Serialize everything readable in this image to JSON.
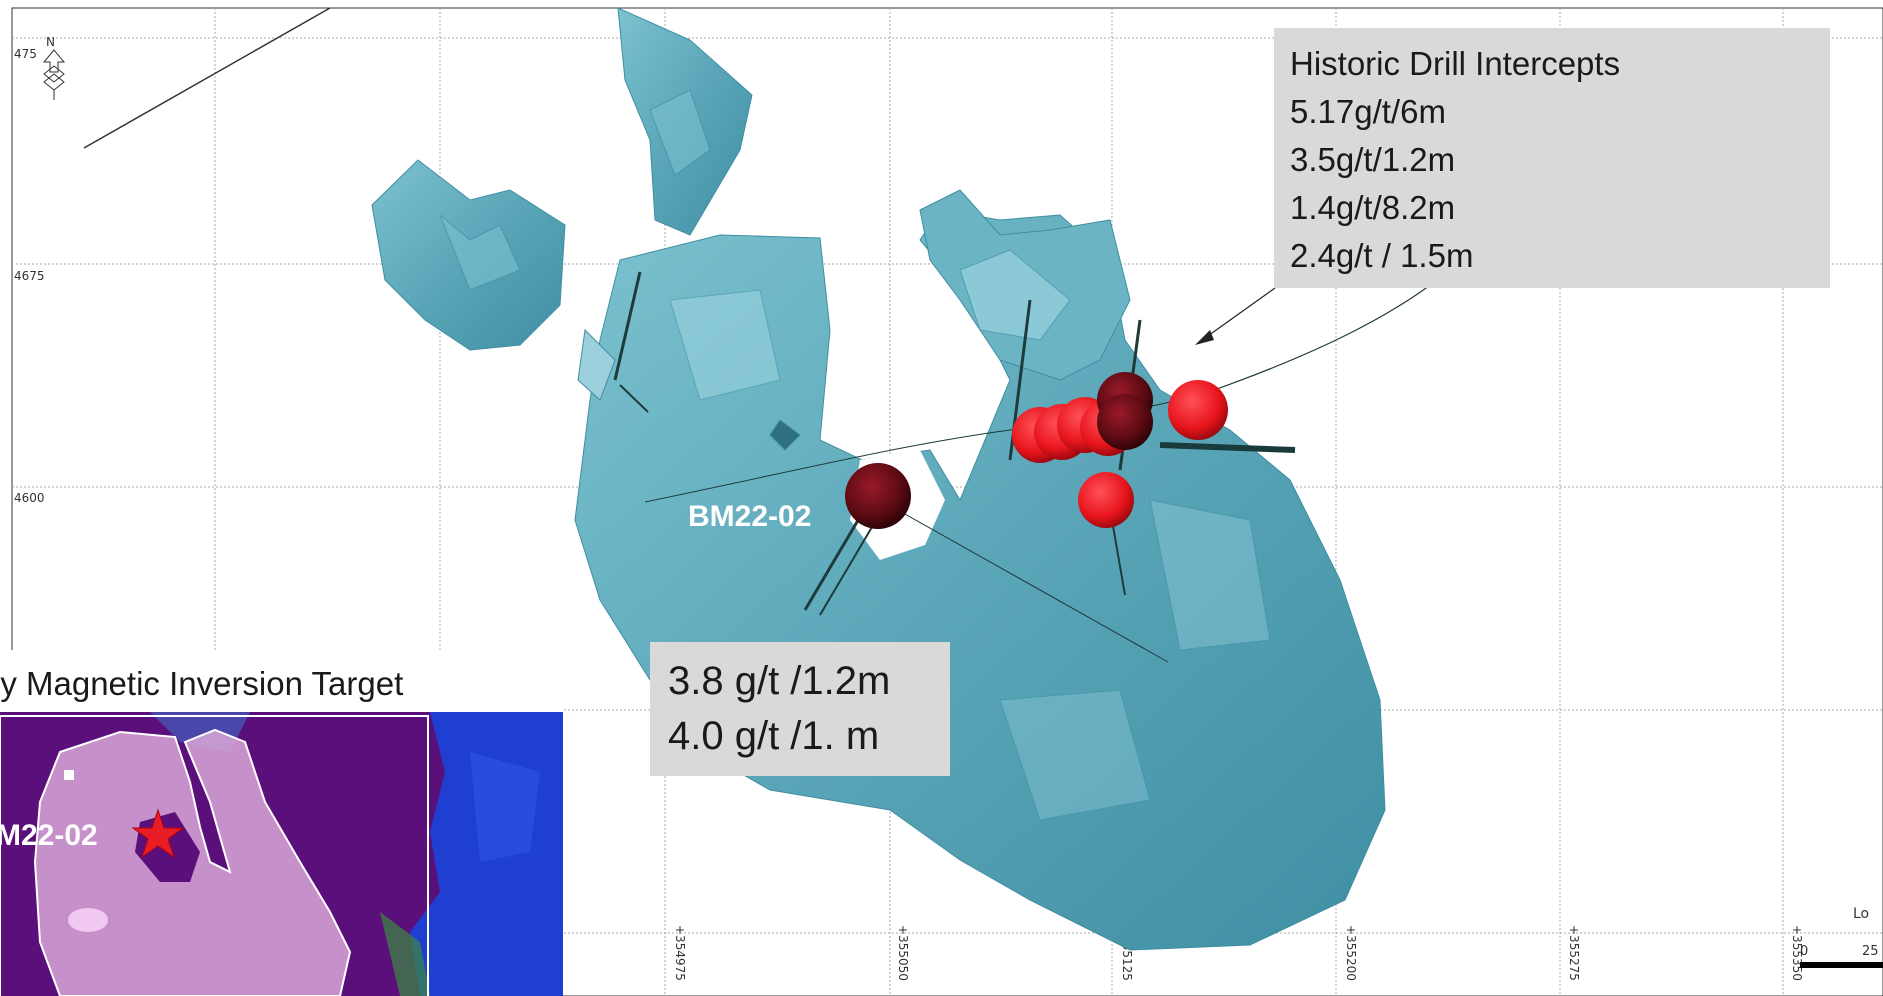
{
  "grid": {
    "northing_labels": [
      "475",
      "4675",
      "4600"
    ],
    "easting_labels": [
      "+354975",
      "+355050",
      "+355125",
      "+355200",
      "+355275",
      "+355350"
    ]
  },
  "north_arrow": {
    "label": "N"
  },
  "scale_bar": {
    "labels": [
      "0",
      "25"
    ],
    "corner_text": "Lo"
  },
  "labels": {
    "drillhole": "BM22-02"
  },
  "historic_box": {
    "lines": [
      "Historic Drill Intercepts",
      "5.17g/t/6m",
      "3.5g/t/1.2m",
      "1.4g/t/8.2m",
      "2.4g/t / 1.5m"
    ]
  },
  "bm_box": {
    "lines": [
      "3.8 g/t /1.2m",
      "4.0 g/t /1. m"
    ]
  },
  "inset": {
    "title": "ly Magnetic Inversion Target",
    "drillhole_label": "M22-02"
  },
  "colors": {
    "body_fill": "#5fa8b8",
    "body_light": "#a8dbe6",
    "intercept_red": "#e8141c",
    "intercept_dark": "#5a0a12",
    "inset_bg": "#5b0f7a",
    "inset_target": "#d9a8d8",
    "inset_blue": "#1f3fd0",
    "star": "#e81c24",
    "box_bg": "#d9d9d9"
  }
}
